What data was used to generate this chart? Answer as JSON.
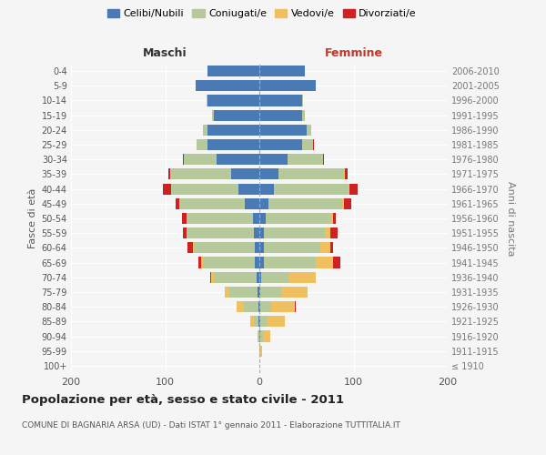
{
  "age_groups": [
    "100+",
    "95-99",
    "90-94",
    "85-89",
    "80-84",
    "75-79",
    "70-74",
    "65-69",
    "60-64",
    "55-59",
    "50-54",
    "45-49",
    "40-44",
    "35-39",
    "30-34",
    "25-29",
    "20-24",
    "15-19",
    "10-14",
    "5-9",
    "0-4"
  ],
  "birth_years": [
    "≤ 1910",
    "1911-1915",
    "1916-1920",
    "1921-1925",
    "1926-1930",
    "1931-1935",
    "1936-1940",
    "1941-1945",
    "1946-1950",
    "1951-1955",
    "1956-1960",
    "1961-1965",
    "1966-1970",
    "1971-1975",
    "1976-1980",
    "1981-1985",
    "1986-1990",
    "1991-1995",
    "1996-2000",
    "2001-2005",
    "2006-2010"
  ],
  "colors": {
    "celibi": "#4a7ab5",
    "coniugati": "#b5c99a",
    "vedovi": "#f0c060",
    "divorziati": "#cc2222"
  },
  "males": {
    "celibi": [
      0,
      0,
      0,
      1,
      1,
      2,
      3,
      5,
      5,
      6,
      7,
      15,
      22,
      30,
      45,
      55,
      55,
      48,
      55,
      68,
      55
    ],
    "coniugati": [
      0,
      0,
      1,
      5,
      15,
      30,
      45,
      55,
      65,
      70,
      70,
      70,
      72,
      65,
      35,
      12,
      5,
      2,
      1,
      0,
      0
    ],
    "vedovi": [
      0,
      0,
      1,
      4,
      8,
      5,
      3,
      2,
      1,
      1,
      0,
      0,
      0,
      0,
      0,
      0,
      0,
      0,
      0,
      0,
      0
    ],
    "divorziati": [
      0,
      0,
      0,
      0,
      0,
      0,
      1,
      3,
      5,
      4,
      5,
      4,
      8,
      2,
      1,
      0,
      0,
      0,
      0,
      0,
      0
    ]
  },
  "females": {
    "nubili": [
      0,
      0,
      1,
      1,
      1,
      1,
      2,
      5,
      5,
      5,
      7,
      10,
      15,
      20,
      30,
      45,
      50,
      45,
      45,
      60,
      48
    ],
    "coniugate": [
      0,
      1,
      3,
      8,
      12,
      22,
      30,
      55,
      60,
      65,
      68,
      78,
      80,
      70,
      38,
      12,
      5,
      3,
      1,
      0,
      0
    ],
    "vedove": [
      0,
      2,
      8,
      18,
      25,
      28,
      28,
      18,
      10,
      5,
      3,
      2,
      1,
      1,
      0,
      0,
      0,
      0,
      0,
      0,
      0
    ],
    "divorziate": [
      0,
      0,
      0,
      0,
      1,
      0,
      0,
      8,
      3,
      8,
      3,
      8,
      8,
      3,
      1,
      1,
      0,
      0,
      0,
      0,
      0
    ]
  },
  "xlim": 200,
  "title": "Popolazione per età, sesso e stato civile - 2011",
  "subtitle": "COMUNE DI BAGNARIA ARSA (UD) - Dati ISTAT 1° gennaio 2011 - Elaborazione TUTTITALIA.IT",
  "ylabel_left": "Fasce di età",
  "ylabel_right": "Anni di nascita",
  "xlabel_left": "Maschi",
  "xlabel_right": "Femmine",
  "bg_color": "#f5f5f5",
  "bar_height": 0.75,
  "legend_labels": [
    "Celibi/Nubili",
    "Coniugati/e",
    "Vedovi/e",
    "Divorziati/e"
  ]
}
